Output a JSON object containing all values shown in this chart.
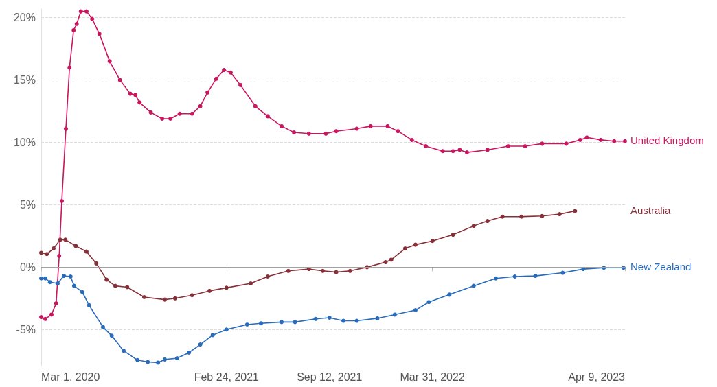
{
  "chart_data": {
    "type": "line",
    "marker": "circle",
    "grid": "y",
    "legend": false,
    "xlim": [
      "2020-03-01",
      "2023-04-09"
    ],
    "xticks": [
      {
        "value": "2020-03-01",
        "label": "Mar 1, 2020"
      },
      {
        "value": "2021-02-24",
        "label": "Feb 24, 2021"
      },
      {
        "value": "2021-09-12",
        "label": "Sep 12, 2021"
      },
      {
        "value": "2022-03-31",
        "label": "Mar 31, 2022"
      },
      {
        "value": "2023-04-09",
        "label": "Apr 9, 2023"
      }
    ],
    "ylim": [
      -7.9,
      20.7
    ],
    "yticks": [
      {
        "value": -5,
        "label": "-5%"
      },
      {
        "value": 0,
        "label": "0%"
      },
      {
        "value": 5,
        "label": "5%"
      },
      {
        "value": 10,
        "label": "10%"
      },
      {
        "value": 15,
        "label": "15%"
      },
      {
        "value": 20,
        "label": "20%"
      }
    ],
    "ref_lines": [
      {
        "axis": "y",
        "value": 0,
        "color": "#a0a0a0"
      }
    ],
    "series": [
      {
        "name": "United Kingdom",
        "color": "#c8175e",
        "x": [
          "2020-03-01",
          "2020-03-09",
          "2020-03-21",
          "2020-03-30",
          "2020-04-05",
          "2020-04-10",
          "2020-04-18",
          "2020-04-25",
          "2020-05-03",
          "2020-05-09",
          "2020-05-17",
          "2020-05-28",
          "2020-06-08",
          "2020-06-22",
          "2020-07-12",
          "2020-08-01",
          "2020-08-21",
          "2020-08-31",
          "2020-09-08",
          "2020-09-30",
          "2020-10-22",
          "2020-11-07",
          "2020-11-25",
          "2020-12-19",
          "2021-01-04",
          "2021-01-18",
          "2021-02-04",
          "2021-02-19",
          "2021-03-04",
          "2021-03-23",
          "2021-04-21",
          "2021-05-15",
          "2021-06-11",
          "2021-07-05",
          "2021-08-03",
          "2021-09-05",
          "2021-09-25",
          "2021-11-04",
          "2021-12-01",
          "2022-01-03",
          "2022-01-23",
          "2022-02-19",
          "2022-03-18",
          "2022-04-20",
          "2022-05-10",
          "2022-05-23",
          "2022-06-06",
          "2022-07-16",
          "2022-08-25",
          "2022-09-27",
          "2022-10-30",
          "2022-12-16",
          "2023-01-12",
          "2023-01-25",
          "2023-02-21",
          "2023-03-19",
          "2023-04-09"
        ],
        "values": [
          -4.0,
          -4.15,
          -3.8,
          -2.9,
          0.9,
          5.3,
          11.1,
          16.0,
          19.0,
          19.5,
          20.5,
          20.5,
          19.9,
          18.7,
          16.5,
          15.0,
          13.9,
          13.8,
          13.2,
          12.4,
          11.9,
          11.9,
          12.3,
          12.3,
          12.9,
          14.0,
          15.1,
          15.8,
          15.6,
          14.6,
          12.9,
          12.1,
          11.3,
          10.8,
          10.7,
          10.7,
          10.9,
          11.1,
          11.3,
          11.3,
          10.9,
          10.2,
          9.7,
          9.3,
          9.3,
          9.4,
          9.2,
          9.4,
          9.7,
          9.7,
          9.9,
          9.9,
          10.2,
          10.4,
          10.2,
          10.1,
          10.1
        ]
      },
      {
        "name": "Australia",
        "color": "#883039",
        "x": [
          "2020-03-01",
          "2020-03-12",
          "2020-03-25",
          "2020-04-07",
          "2020-04-17",
          "2020-05-07",
          "2020-05-28",
          "2020-06-16",
          "2020-07-06",
          "2020-07-23",
          "2020-08-15",
          "2020-09-17",
          "2020-10-27",
          "2020-11-16",
          "2020-12-19",
          "2021-01-22",
          "2021-02-24",
          "2021-04-12",
          "2021-05-15",
          "2021-06-24",
          "2021-08-03",
          "2021-08-30",
          "2021-09-25",
          "2021-10-22",
          "2021-11-24",
          "2021-12-30",
          "2022-01-10",
          "2022-02-06",
          "2022-02-26",
          "2022-03-31",
          "2022-05-10",
          "2022-06-19",
          "2022-07-16",
          "2022-08-14",
          "2022-09-20",
          "2022-10-30",
          "2022-12-03",
          "2023-01-02"
        ],
        "values": [
          1.15,
          1.05,
          1.5,
          2.2,
          2.2,
          1.7,
          1.25,
          0.3,
          -1.0,
          -1.5,
          -1.6,
          -2.4,
          -2.6,
          -2.5,
          -2.25,
          -1.9,
          -1.65,
          -1.3,
          -0.75,
          -0.3,
          -0.15,
          -0.3,
          -0.4,
          -0.3,
          0.0,
          0.4,
          0.6,
          1.5,
          1.8,
          2.1,
          2.6,
          3.3,
          3.7,
          4.05,
          4.05,
          4.1,
          4.25,
          4.5
        ]
      },
      {
        "name": "New Zealand",
        "color": "#286bbb",
        "x": [
          "2020-03-01",
          "2020-03-09",
          "2020-03-18",
          "2020-04-02",
          "2020-04-14",
          "2020-04-27",
          "2020-05-04",
          "2020-05-20",
          "2020-06-02",
          "2020-06-29",
          "2020-07-16",
          "2020-08-08",
          "2020-09-04",
          "2020-09-24",
          "2020-10-14",
          "2020-10-27",
          "2020-11-20",
          "2020-12-13",
          "2021-01-04",
          "2021-01-28",
          "2021-02-24",
          "2021-04-05",
          "2021-05-02",
          "2021-06-11",
          "2021-07-07",
          "2021-08-16",
          "2021-09-12",
          "2021-10-09",
          "2021-11-04",
          "2021-12-14",
          "2022-01-17",
          "2022-02-26",
          "2022-03-24",
          "2022-05-03",
          "2022-06-19",
          "2022-08-01",
          "2022-09-07",
          "2022-10-17",
          "2022-12-09",
          "2023-01-18",
          "2023-02-27",
          "2023-04-06"
        ],
        "values": [
          -0.9,
          -0.9,
          -1.2,
          -1.3,
          -0.7,
          -0.75,
          -1.5,
          -2.0,
          -3.05,
          -4.8,
          -5.5,
          -6.7,
          -7.45,
          -7.6,
          -7.65,
          -7.4,
          -7.3,
          -6.85,
          -6.2,
          -5.45,
          -5.0,
          -4.6,
          -4.5,
          -4.4,
          -4.4,
          -4.15,
          -4.05,
          -4.3,
          -4.3,
          -4.1,
          -3.8,
          -3.45,
          -2.8,
          -2.2,
          -1.5,
          -0.9,
          -0.75,
          -0.7,
          -0.45,
          -0.15,
          -0.05,
          -0.05
        ]
      }
    ]
  }
}
